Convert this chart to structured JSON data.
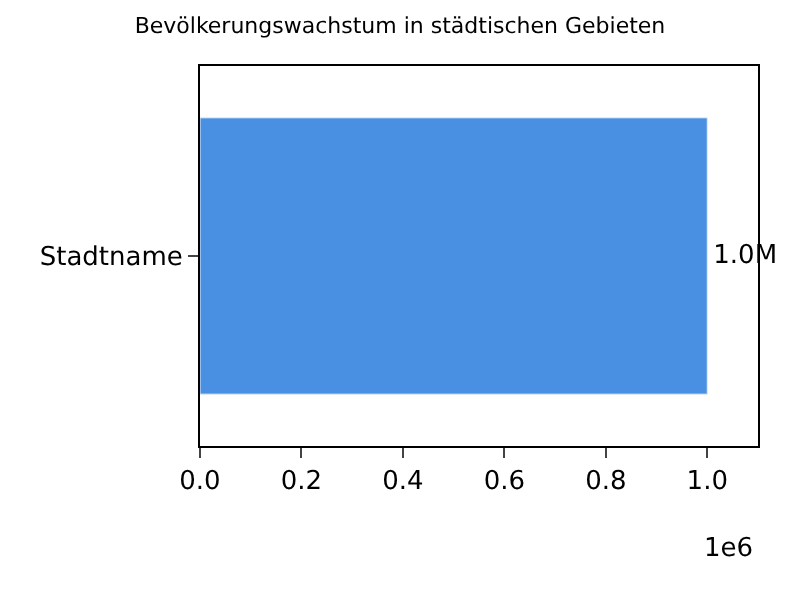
{
  "chart_data": {
    "type": "bar",
    "orientation": "horizontal",
    "title": "Bevölkerungswachstum in städtischen Gebieten",
    "xlabel": "1e6",
    "categories": [
      "Stadtname"
    ],
    "values": [
      1.0
    ],
    "color": "#4a90e2",
    "value_labels": [
      "1.0M"
    ],
    "xlim": [
      0,
      1.1
    ],
    "xticks": [
      {
        "value": 0,
        "label": "0.0"
      },
      0.2,
      0.4,
      0.6,
      0.8,
      {
        "value": 1,
        "label": "1.0"
      }
    ],
    "legend": false
  }
}
